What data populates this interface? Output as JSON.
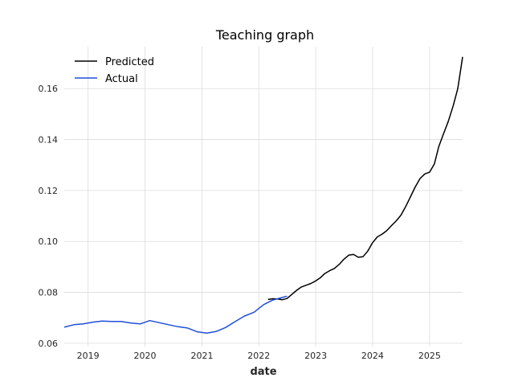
{
  "chart_data": {
    "type": "line",
    "title": "Teaching graph",
    "xlabel": "date",
    "ylabel": "",
    "x_axis_type": "date",
    "xlim": [
      "2018-08-01",
      "2025-08-01"
    ],
    "ylim": [
      0.0587,
      0.1765
    ],
    "x_ticks": [
      "2019",
      "2020",
      "2021",
      "2022",
      "2023",
      "2024",
      "2025"
    ],
    "y_ticks": [
      "0.06",
      "0.08",
      "0.10",
      "0.12",
      "0.14",
      "0.16"
    ],
    "y_tick_values": [
      0.06,
      0.08,
      0.1,
      0.12,
      0.14,
      0.16
    ],
    "grid": true,
    "legend_position": "top-left",
    "series": [
      {
        "name": "Predicted",
        "color": "#000000",
        "points": [
          [
            "2022-03-01",
            0.0772
          ],
          [
            "2022-04-01",
            0.0775
          ],
          [
            "2022-05-01",
            0.0774
          ],
          [
            "2022-06-01",
            0.0771
          ],
          [
            "2022-07-01",
            0.0776
          ],
          [
            "2022-08-01",
            0.0792
          ],
          [
            "2022-09-01",
            0.0808
          ],
          [
            "2022-10-01",
            0.0821
          ],
          [
            "2022-11-01",
            0.0828
          ],
          [
            "2022-12-01",
            0.0835
          ],
          [
            "2023-01-01",
            0.0845
          ],
          [
            "2023-02-01",
            0.0858
          ],
          [
            "2023-03-01",
            0.0874
          ],
          [
            "2023-04-01",
            0.0885
          ],
          [
            "2023-05-01",
            0.0894
          ],
          [
            "2023-06-01",
            0.091
          ],
          [
            "2023-07-01",
            0.093
          ],
          [
            "2023-08-01",
            0.0946
          ],
          [
            "2023-09-01",
            0.0949
          ],
          [
            "2023-10-01",
            0.0938
          ],
          [
            "2023-11-01",
            0.094
          ],
          [
            "2023-12-01",
            0.0962
          ],
          [
            "2024-01-01",
            0.0995
          ],
          [
            "2024-02-01",
            0.1018
          ],
          [
            "2024-03-01",
            0.1028
          ],
          [
            "2024-04-01",
            0.1042
          ],
          [
            "2024-05-01",
            0.1062
          ],
          [
            "2024-06-01",
            0.1081
          ],
          [
            "2024-07-01",
            0.1103
          ],
          [
            "2024-08-01",
            0.1137
          ],
          [
            "2024-09-01",
            0.1176
          ],
          [
            "2024-10-01",
            0.1214
          ],
          [
            "2024-11-01",
            0.1247
          ],
          [
            "2024-12-01",
            0.1265
          ],
          [
            "2025-01-01",
            0.1272
          ],
          [
            "2025-02-01",
            0.1305
          ],
          [
            "2025-03-01",
            0.1372
          ],
          [
            "2025-04-01",
            0.1423
          ],
          [
            "2025-05-01",
            0.1472
          ],
          [
            "2025-06-01",
            0.1532
          ],
          [
            "2025-07-01",
            0.16
          ],
          [
            "2025-08-01",
            0.1725
          ]
        ]
      },
      {
        "name": "Actual",
        "color": "#1f4fd8",
        "points": [
          [
            "2018-08-01",
            0.0663
          ],
          [
            "2018-10-01",
            0.0673
          ],
          [
            "2018-12-01",
            0.0676
          ],
          [
            "2019-02-01",
            0.0683
          ],
          [
            "2019-04-01",
            0.0687
          ],
          [
            "2019-06-01",
            0.0686
          ],
          [
            "2019-08-01",
            0.0686
          ],
          [
            "2019-10-01",
            0.068
          ],
          [
            "2019-12-01",
            0.0676
          ],
          [
            "2020-02-01",
            0.0689
          ],
          [
            "2020-04-01",
            0.0681
          ],
          [
            "2020-06-01",
            0.0673
          ],
          [
            "2020-08-01",
            0.0665
          ],
          [
            "2020-10-01",
            0.066
          ],
          [
            "2020-12-01",
            0.0645
          ],
          [
            "2021-02-01",
            0.064
          ],
          [
            "2021-04-01",
            0.0646
          ],
          [
            "2021-06-01",
            0.0662
          ],
          [
            "2021-08-01",
            0.0685
          ],
          [
            "2021-10-01",
            0.0707
          ],
          [
            "2021-12-01",
            0.0722
          ],
          [
            "2022-02-01",
            0.0752
          ],
          [
            "2022-04-01",
            0.077
          ],
          [
            "2022-06-01",
            0.078
          ],
          [
            "2022-07-01",
            0.0785
          ]
        ]
      }
    ]
  }
}
